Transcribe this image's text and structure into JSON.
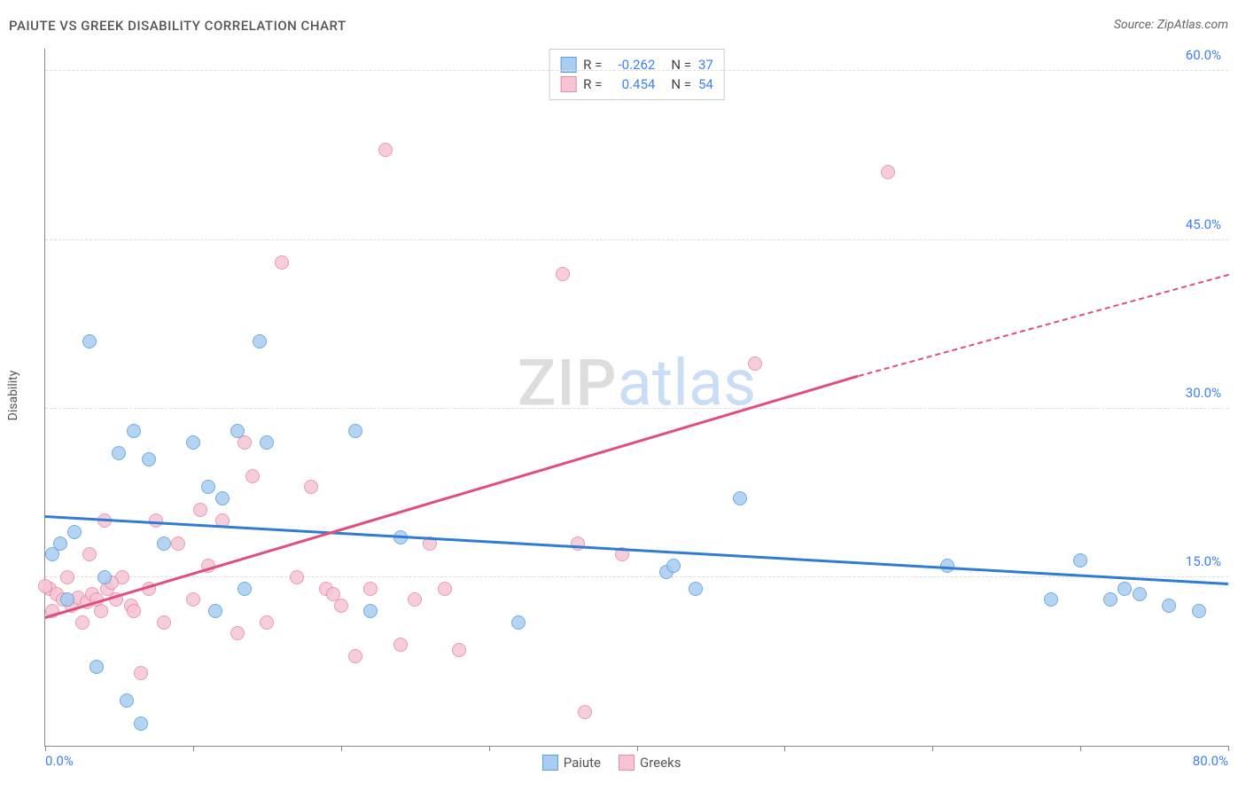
{
  "header": {
    "title": "PAIUTE VS GREEK DISABILITY CORRELATION CHART",
    "source": "Source: ZipAtlas.com"
  },
  "chart": {
    "type": "scatter",
    "yaxis_title": "Disability",
    "xlim": [
      0,
      80
    ],
    "ylim": [
      0,
      62
    ],
    "xticks": [
      0,
      10,
      20,
      30,
      40,
      50,
      60,
      70,
      80
    ],
    "yticks": [
      15,
      30,
      45,
      60
    ],
    "ytick_labels": [
      "15.0%",
      "30.0%",
      "45.0%",
      "60.0%"
    ],
    "xlabel_min": "0.0%",
    "xlabel_max": "80.0%",
    "background_color": "#ffffff",
    "grid_color": "#dddddd",
    "axis_color": "#888888",
    "marker_radius": 8,
    "marker_border_width": 1.5,
    "series": {
      "paiute": {
        "label": "Paiute",
        "fill_color": "#a9cdf0",
        "border_color": "#5a9fe0",
        "line_color": "#2e7cd6",
        "points": [
          [
            0.5,
            17
          ],
          [
            1,
            18
          ],
          [
            1.5,
            13
          ],
          [
            2,
            19
          ],
          [
            3,
            36
          ],
          [
            4,
            15
          ],
          [
            5,
            26
          ],
          [
            5.5,
            4
          ],
          [
            6,
            28
          ],
          [
            7,
            25.5
          ],
          [
            3.5,
            7
          ],
          [
            6.5,
            2
          ],
          [
            8,
            18
          ],
          [
            10,
            27
          ],
          [
            11,
            23
          ],
          [
            12,
            22
          ],
          [
            13,
            28
          ],
          [
            14.5,
            36
          ],
          [
            15,
            27
          ],
          [
            21,
            28
          ],
          [
            22,
            12
          ],
          [
            24,
            18.5
          ],
          [
            32,
            11
          ],
          [
            42,
            15.5
          ],
          [
            42.5,
            16
          ],
          [
            44,
            14
          ],
          [
            47,
            22
          ],
          [
            61,
            16
          ],
          [
            68,
            13
          ],
          [
            70,
            16.5
          ],
          [
            72,
            13
          ],
          [
            73,
            14
          ],
          [
            74,
            13.5
          ],
          [
            76,
            12.5
          ],
          [
            78,
            12
          ],
          [
            11.5,
            12
          ],
          [
            13.5,
            14
          ]
        ],
        "trend": {
          "x1": 0,
          "y1": 20.5,
          "x2": 80,
          "y2": 14.5
        }
      },
      "greeks": {
        "label": "Greeks",
        "fill_color": "#f5c5d4",
        "border_color": "#e88aa8",
        "line_color": "#e04d7e",
        "points": [
          [
            0.3,
            14
          ],
          [
            0.8,
            13.5
          ],
          [
            1.2,
            13
          ],
          [
            1.8,
            12.5
          ],
          [
            2.2,
            13.2
          ],
          [
            2.8,
            12.8
          ],
          [
            3.2,
            13.5
          ],
          [
            3.8,
            12
          ],
          [
            4.2,
            14
          ],
          [
            4.8,
            13
          ],
          [
            5.2,
            15
          ],
          [
            5.8,
            12.5
          ],
          [
            3,
            17
          ],
          [
            4,
            20
          ],
          [
            6,
            12
          ],
          [
            7,
            14
          ],
          [
            7.5,
            20
          ],
          [
            8,
            11
          ],
          [
            9,
            18
          ],
          [
            10,
            13
          ],
          [
            10.5,
            21
          ],
          [
            11,
            16
          ],
          [
            12,
            20
          ],
          [
            13,
            10
          ],
          [
            13.5,
            27
          ],
          [
            14,
            24
          ],
          [
            15,
            11
          ],
          [
            16,
            43
          ],
          [
            17,
            15
          ],
          [
            18,
            23
          ],
          [
            19,
            14
          ],
          [
            19.5,
            13.5
          ],
          [
            20,
            12.5
          ],
          [
            21,
            8
          ],
          [
            22,
            14
          ],
          [
            23,
            53
          ],
          [
            24,
            9
          ],
          [
            25,
            13
          ],
          [
            26,
            18
          ],
          [
            27,
            14
          ],
          [
            28,
            8.5
          ],
          [
            35,
            42
          ],
          [
            36,
            18
          ],
          [
            36.5,
            3
          ],
          [
            39,
            17
          ],
          [
            48,
            34
          ],
          [
            57,
            51
          ],
          [
            6.5,
            6.5
          ],
          [
            2.5,
            11
          ],
          [
            4.5,
            14.5
          ],
          [
            1.5,
            15
          ],
          [
            0,
            14.2
          ],
          [
            0.5,
            12
          ],
          [
            3.5,
            13
          ]
        ],
        "trend_solid": {
          "x1": 0,
          "y1": 11.5,
          "x2": 55,
          "y2": 33
        },
        "trend_dashed": {
          "x1": 55,
          "y1": 33,
          "x2": 80,
          "y2": 42
        }
      }
    }
  },
  "legend_top": {
    "rows": [
      {
        "swatch": "paiute",
        "r_label": "R =",
        "r_value": "-0.262",
        "n_label": "N =",
        "n_value": "37"
      },
      {
        "swatch": "greeks",
        "r_label": "R =",
        "r_value": "0.454",
        "n_label": "N =",
        "n_value": "54"
      }
    ]
  },
  "legend_bottom": {
    "items": [
      {
        "swatch": "paiute",
        "label": "Paiute"
      },
      {
        "swatch": "greeks",
        "label": "Greeks"
      }
    ]
  },
  "watermark": {
    "zip": "ZIP",
    "atlas": "atlas"
  }
}
